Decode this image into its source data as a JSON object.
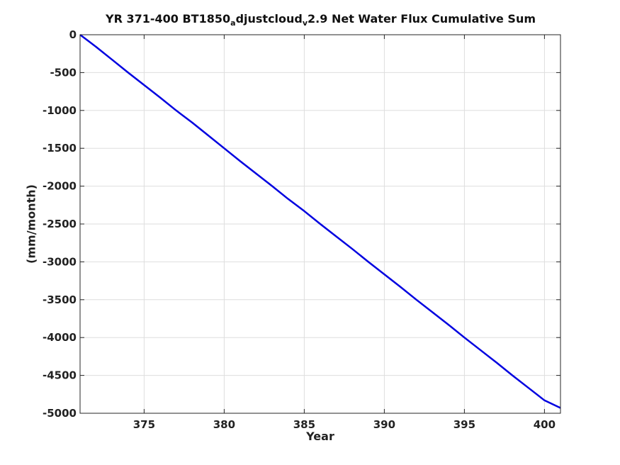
{
  "chart_data": {
    "type": "line",
    "title": "YR 371-400 BT1850",
    "title_sub1": "a",
    "title_mid": "djustcloud",
    "title_sub2": "v",
    "title_end": "2.9 Net Water Flux Cumulative Sum",
    "xlabel": "Year",
    "ylabel": "(mm/month)",
    "xlim": [
      371,
      401
    ],
    "ylim": [
      -5000,
      0
    ],
    "xticks": [
      375,
      380,
      385,
      390,
      395,
      400
    ],
    "yticks": [
      0,
      -500,
      -1000,
      -1500,
      -2000,
      -2500,
      -3000,
      -3500,
      -4000,
      -4500,
      -5000
    ],
    "grid": true,
    "series": [
      {
        "color": "#0000e0",
        "x": [
          371,
          372,
          373,
          374,
          375,
          376,
          377,
          378,
          379,
          380,
          381,
          382,
          383,
          384,
          385,
          386,
          387,
          388,
          389,
          390,
          391,
          392,
          393,
          394,
          395,
          396,
          397,
          398,
          399,
          400,
          401
        ],
        "y": [
          0,
          -160,
          -330,
          -500,
          -665,
          -830,
          -1000,
          -1160,
          -1330,
          -1500,
          -1670,
          -1835,
          -2000,
          -2170,
          -2330,
          -2500,
          -2665,
          -2830,
          -3000,
          -3165,
          -3330,
          -3500,
          -3665,
          -3830,
          -4000,
          -4165,
          -4330,
          -4500,
          -4665,
          -4830,
          -4930
        ]
      }
    ]
  }
}
